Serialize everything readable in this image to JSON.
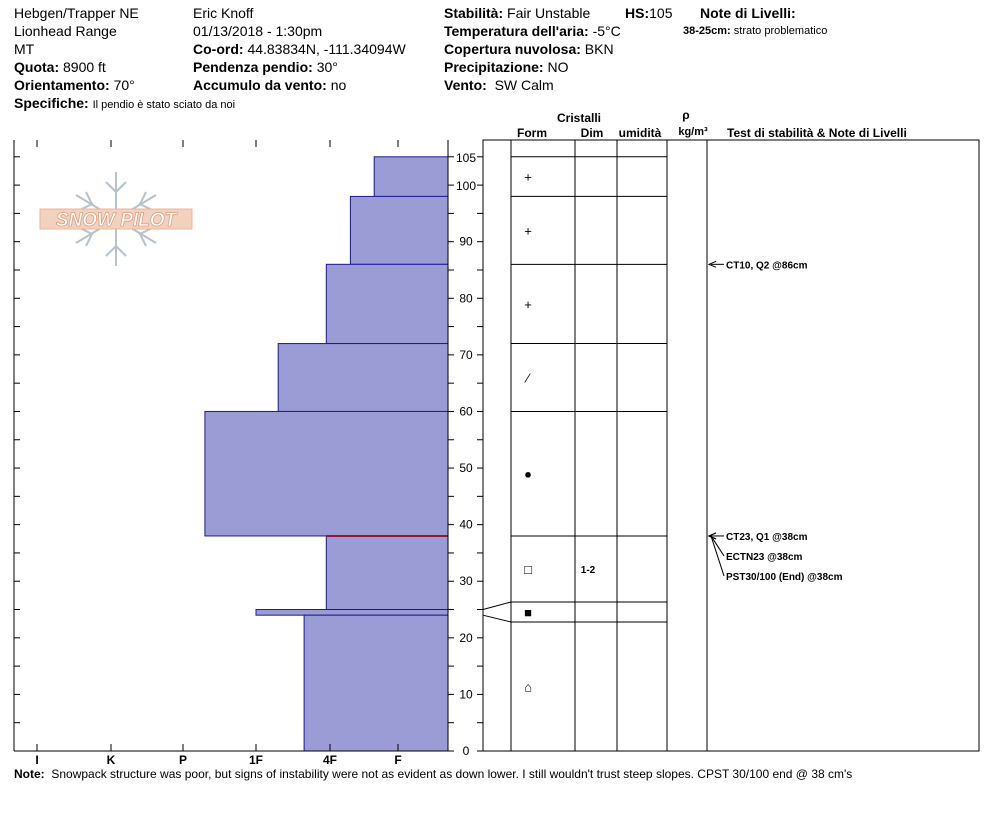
{
  "header": {
    "location": "Hebgen/Trapper NE",
    "range": "Lionhead Range",
    "state": "MT",
    "elevation_label": "Quota:",
    "elevation": "8900 ft",
    "aspect_label": "Orientamento:",
    "aspect": "70°",
    "specifics_label": "Specifiche:",
    "specifics": "Il pendio è stato sciato da noi",
    "observer": "Eric Knoff",
    "datetime": "01/13/2018 - 1:30pm",
    "coord_label": "Co-ord:",
    "coord": "44.83834N, -111.34094W",
    "slope_label": "Pendenza pendio:",
    "slope": "30°",
    "wind_loading_label": "Accumulo da vento:",
    "wind_loading": "no",
    "stability_label": "Stabilità:",
    "stability": "Fair Unstable",
    "hs_label": "HS:",
    "hs": "105",
    "air_temp_label": "Temperatura dell'aria:",
    "air_temp": "-5°C",
    "cloud_label": "Copertura nuvolosa:",
    "cloud": "BKN",
    "precip_label": "Precipitazione:",
    "precip": "NO",
    "wind_label": "Vento:",
    "wind": "SW Calm",
    "layer_notes_label": "Note di Livelli:",
    "layer_note_range": "38-25cm:",
    "layer_note_text": "strato problematico"
  },
  "logo": {
    "text": "SNOW PILOT"
  },
  "table_headers": {
    "crystals": "Cristalli",
    "form": "Form",
    "size": "Dim",
    "moisture": "umidità",
    "rho": "ρ",
    "density_unit": "kg/m³",
    "tests": "Test di stabilità & Note di Livelli"
  },
  "chart_data": {
    "type": "bar",
    "orientation": "horizontal",
    "hardness_scale": [
      "I",
      "K",
      "P",
      "1F",
      "4F",
      "F"
    ],
    "y_ticks": [
      0,
      10,
      20,
      30,
      40,
      50,
      60,
      70,
      80,
      90,
      100,
      105
    ],
    "ylim": [
      0,
      105
    ],
    "layers": [
      {
        "top": 105,
        "bottom": 98,
        "hardness": 0.35,
        "form": "+",
        "size": ""
      },
      {
        "top": 98,
        "bottom": 86,
        "hardness": 0.7,
        "form": "+",
        "size": ""
      },
      {
        "top": 86,
        "bottom": 72,
        "hardness": 1.05,
        "form": "+",
        "size": ""
      },
      {
        "top": 72,
        "bottom": 60,
        "hardness": 1.7,
        "form": "⁄",
        "size": ""
      },
      {
        "top": 60,
        "bottom": 38,
        "hardness": 2.7,
        "form": "●",
        "size": ""
      },
      {
        "top": 38,
        "bottom": 25,
        "hardness": 1.05,
        "form": "□",
        "size": "1-2"
      },
      {
        "top": 25,
        "bottom": 24,
        "hardness": 2.0,
        "form": "■",
        "size": ""
      },
      {
        "top": 24,
        "bottom": 0,
        "hardness": 1.35,
        "form": "⌂",
        "size": ""
      }
    ],
    "tests": [
      {
        "depth": 86,
        "label": "CT10, Q2 @86cm"
      },
      {
        "depth": 38,
        "label": "CT23, Q1 @38cm"
      },
      {
        "depth": 38,
        "label": "ECTN23 @38cm"
      },
      {
        "depth": 38,
        "label": "PST30/100 (End) @38cm"
      }
    ],
    "critical_layer_depth": 38
  },
  "note": {
    "label": "Note:",
    "text": "Snowpack structure was poor, but signs of instability were not as evident as down lower. I still wouldn't trust steep slopes. CPST 30/100 end @ 38 cm's"
  }
}
